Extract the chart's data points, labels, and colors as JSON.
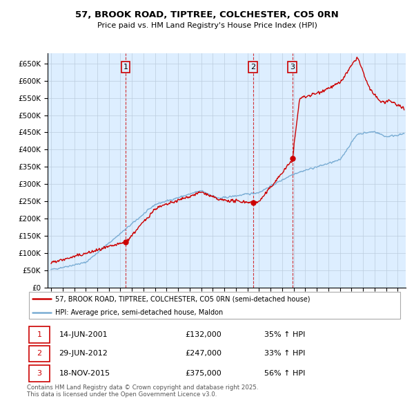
{
  "title": "57, BROOK ROAD, TIPTREE, COLCHESTER, CO5 0RN",
  "subtitle": "Price paid vs. HM Land Registry's House Price Index (HPI)",
  "red_label": "57, BROOK ROAD, TIPTREE, COLCHESTER, CO5 0RN (semi-detached house)",
  "blue_label": "HPI: Average price, semi-detached house, Maldon",
  "footer": "Contains HM Land Registry data © Crown copyright and database right 2025.\nThis data is licensed under the Open Government Licence v3.0.",
  "transactions": [
    {
      "num": 1,
      "date": "14-JUN-2001",
      "price": "£132,000",
      "change": "35% ↑ HPI",
      "year": 2001.45,
      "price_val": 132000
    },
    {
      "num": 2,
      "date": "29-JUN-2012",
      "price": "£247,000",
      "change": "33% ↑ HPI",
      "year": 2012.49,
      "price_val": 247000
    },
    {
      "num": 3,
      "date": "18-NOV-2015",
      "price": "£375,000",
      "change": "56% ↑ HPI",
      "year": 2015.88,
      "price_val": 375000
    }
  ],
  "ylim": [
    0,
    680000
  ],
  "yticks": [
    0,
    50000,
    100000,
    150000,
    200000,
    250000,
    300000,
    350000,
    400000,
    450000,
    500000,
    550000,
    600000,
    650000
  ],
  "ytick_labels": [
    "£0",
    "£50K",
    "£100K",
    "£150K",
    "£200K",
    "£250K",
    "£300K",
    "£350K",
    "£400K",
    "£450K",
    "£500K",
    "£550K",
    "£600K",
    "£650K"
  ],
  "xlim_start": 1994.7,
  "xlim_end": 2025.7,
  "red_color": "#cc0000",
  "blue_color": "#7aadd4",
  "plot_bg_color": "#ddeeff",
  "bg_color": "#ffffff",
  "grid_color": "#bbccdd",
  "label_box_bg": "#ddeeff"
}
